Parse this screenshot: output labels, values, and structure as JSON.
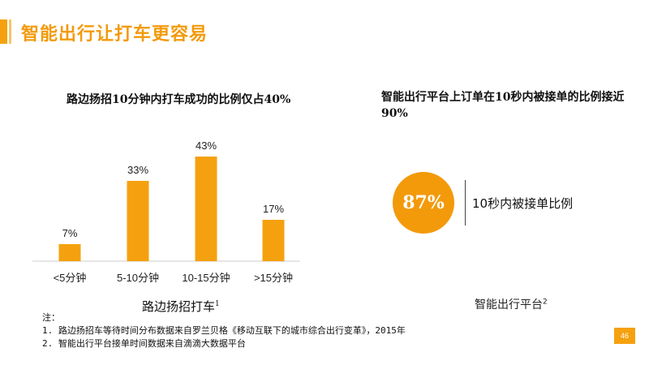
{
  "page": {
    "title": "智能出行让打车更容易",
    "page_number": "46",
    "accent_color": "#f39a0b"
  },
  "left": {
    "title": "路边扬招10分钟内打车成功的比例仅占40%",
    "caption": "路边扬招打车",
    "caption_sup": "1"
  },
  "right": {
    "title": "智能出行平台上订单在10秒内被接单的比例接近90%",
    "circle_value": "87%",
    "circle_label": "10秒内被接单比例",
    "caption": "智能出行平台",
    "caption_sup": "2"
  },
  "notes": {
    "heading": "注：",
    "items": [
      "1. 路边扬招车等待时间分布数据来自罗兰贝格《移动互联下的城市综合出行变革》，2015年",
      "2. 智能出行平台接单时间数据来自滴滴大数据平台"
    ]
  },
  "chart_data": {
    "type": "bar",
    "categories": [
      "<5分钟",
      "5-10分钟",
      "10-15分钟",
      ">15分钟"
    ],
    "values": [
      7,
      33,
      43,
      17
    ],
    "data_labels": [
      "7%",
      "33%",
      "43%",
      "17%"
    ],
    "title": "路边扬招10分钟内打车成功的比例仅占40%",
    "xlabel": "路边扬招打车",
    "ylabel": "",
    "ylim": [
      0,
      50
    ],
    "grid": false,
    "bar_color": "#f5a10f"
  }
}
